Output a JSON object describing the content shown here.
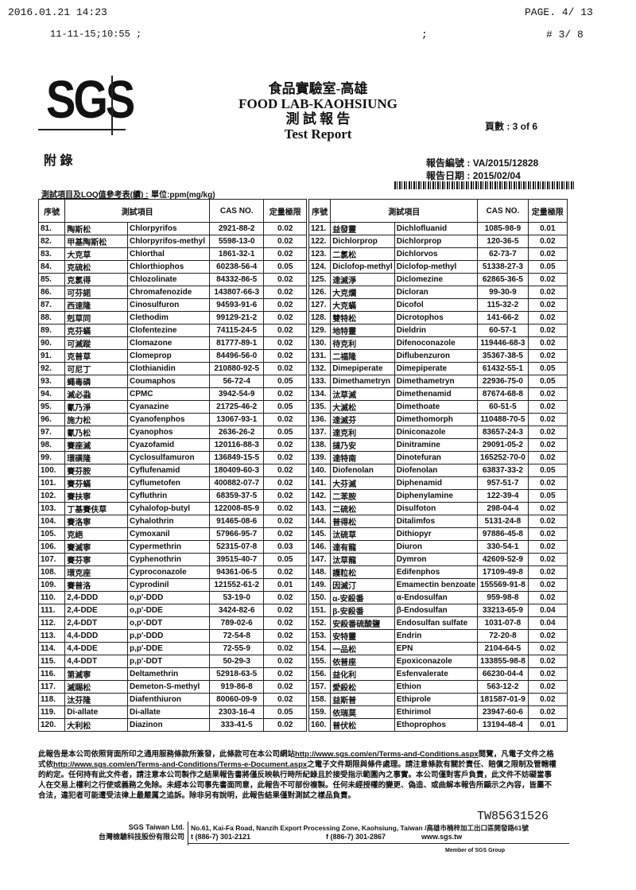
{
  "fax_header": {
    "datetime": "2016.01.21  14:23",
    "page": "PAGE.  4/ 13",
    "stamp": "11-11-15;10:55  ;",
    "sep": ";",
    "sheet": "#  3/  8"
  },
  "logo": "SGS",
  "title": {
    "zh_lab": "食品實驗室-高雄",
    "en_lab": "FOOD LAB-KAOHSIUNG",
    "zh_report": "測 試 報 告",
    "en_report": "Test Report"
  },
  "page_count": "頁數 : 3 of 6",
  "appendix": "附  錄",
  "report_no_label": "報告編號 :",
  "report_no": "VA/2015/12828",
  "report_date_label": "報告日期 :",
  "report_date": "2015/02/04",
  "table_caption": "測試項目及LOQ值參考表(續) :",
  "unit": "單位:ppm(mg/kg)",
  "headers": {
    "no": "序號",
    "item": "測試項目",
    "cas": "CAS NO.",
    "loq": "定量極限"
  },
  "rows_left": [
    [
      "81.",
      "陶斯松",
      "Chlorpyrifos",
      "2921-88-2",
      "0.02"
    ],
    [
      "82.",
      "甲基陶斯松",
      "Chlorpyrifos-methyl",
      "5598-13-0",
      "0.02"
    ],
    [
      "83.",
      "大克草",
      "Chlorthal",
      "1861-32-1",
      "0.02"
    ],
    [
      "84.",
      "克硫松",
      "Chlorthiophos",
      "60238-56-4",
      "0.05"
    ],
    [
      "85.",
      "克氯得",
      "Chlozolinate",
      "84332-86-5",
      "0.02"
    ],
    [
      "86.",
      "可芬諾",
      "Chromafenozide",
      "143807-66-3",
      "0.02"
    ],
    [
      "87.",
      "西速隆",
      "Cinosulfuron",
      "94593-91-6",
      "0.02"
    ],
    [
      "88.",
      "剋草同",
      "Clethodim",
      "99129-21-2",
      "0.02"
    ],
    [
      "89.",
      "克芬蟎",
      "Clofentezine",
      "74115-24-5",
      "0.02"
    ],
    [
      "90.",
      "可滅蹤",
      "Clomazone",
      "81777-89-1",
      "0.02"
    ],
    [
      "91.",
      "克普草",
      "Clomeprop",
      "84496-56-0",
      "0.02"
    ],
    [
      "92.",
      "可尼丁",
      "Clothianidin",
      "210880-92-5",
      "0.02"
    ],
    [
      "93.",
      "蠅毒磷",
      "Coumaphos",
      "56-72-4",
      "0.05"
    ],
    [
      "94.",
      "滅必蝨",
      "CPMC",
      "3942-54-9",
      "0.02"
    ],
    [
      "95.",
      "氰乃淨",
      "Cyanazine",
      "21725-46-2",
      "0.05"
    ],
    [
      "96.",
      "施力松",
      "Cyanofenphos",
      "13067-93-1",
      "0.02"
    ],
    [
      "97.",
      "氰乃松",
      "Cyanophos",
      "2636-26-2",
      "0.05"
    ],
    [
      "98.",
      "賽座滅",
      "Cyazofamid",
      "120116-88-3",
      "0.02"
    ],
    [
      "99.",
      "環磺隆",
      "Cyclosulfamuron",
      "136849-15-5",
      "0.02"
    ],
    [
      "100.",
      "賽芬胺",
      "Cyflufenamid",
      "180409-60-3",
      "0.02"
    ],
    [
      "101.",
      "賽芬蟎",
      "Cyflumetofen",
      "400882-07-7",
      "0.02"
    ],
    [
      "102.",
      "賽扶寧",
      "Cyfluthrin",
      "68359-37-5",
      "0.02"
    ],
    [
      "103.",
      "丁基賽伕草",
      "Cyhalofop-butyl",
      "122008-85-9",
      "0.02"
    ],
    [
      "104.",
      "賽洛寧",
      "Cyhalothrin",
      "91465-08-6",
      "0.02"
    ],
    [
      "105.",
      "克絕",
      "Cymoxanil",
      "57966-95-7",
      "0.02"
    ],
    [
      "106.",
      "賽滅寧",
      "Cypermethrin",
      "52315-07-8",
      "0.03"
    ],
    [
      "107.",
      "賽芬寧",
      "Cyphenothrin",
      "39515-40-7",
      "0.05"
    ],
    [
      "108.",
      "環克座",
      "Cyproconazole",
      "94361-06-5",
      "0.02"
    ],
    [
      "109.",
      "賽普洛",
      "Cyprodinil",
      "121552-61-2",
      "0.01"
    ],
    [
      "110.",
      "2,4-DDD",
      "o,p'-DDD",
      "53-19-0",
      "0.02"
    ],
    [
      "111.",
      "2,4-DDE",
      "o,p'-DDE",
      "3424-82-6",
      "0.02"
    ],
    [
      "112.",
      "2,4-DDT",
      "o,p'-DDT",
      "789-02-6",
      "0.02"
    ],
    [
      "113.",
      "4,4-DDD",
      "p,p'-DDD",
      "72-54-8",
      "0.02"
    ],
    [
      "114.",
      "4,4-DDE",
      "p,p'-DDE",
      "72-55-9",
      "0.02"
    ],
    [
      "115.",
      "4,4-DDT",
      "p,p'-DDT",
      "50-29-3",
      "0.02"
    ],
    [
      "116.",
      "第滅寧",
      "Deltamethrin",
      "52918-63-5",
      "0.02"
    ],
    [
      "117.",
      "滅賜松",
      "Demeton-S-methyl",
      "919-86-8",
      "0.02"
    ],
    [
      "118.",
      "汰芬隆",
      "Diafenthiuron",
      "80060-09-9",
      "0.02"
    ],
    [
      "119.",
      "Di-allate",
      "Di-allate",
      "2303-16-4",
      "0.05"
    ],
    [
      "120.",
      "大利松",
      "Diazinon",
      "333-41-5",
      "0.02"
    ]
  ],
  "rows_right": [
    [
      "121.",
      "益發靈",
      "Dichlofluanid",
      "1085-98-9",
      "0.01"
    ],
    [
      "122.",
      "Dichlorprop",
      "Dichlorprop",
      "120-36-5",
      "0.02"
    ],
    [
      "123.",
      "二氯松",
      "Dichlorvos",
      "62-73-7",
      "0.02"
    ],
    [
      "124.",
      "Diclofop-methyl",
      "Diclofop-methyl",
      "51338-27-3",
      "0.05"
    ],
    [
      "125.",
      "達滅淨",
      "Diclomezine",
      "62865-36-5",
      "0.02"
    ],
    [
      "126.",
      "大克爛",
      "Dicloran",
      "99-30-9",
      "0.02"
    ],
    [
      "127.",
      "大克蟎",
      "Dicofol",
      "115-32-2",
      "0.02"
    ],
    [
      "128.",
      "雙特松",
      "Dicrotophos",
      "141-66-2",
      "0.02"
    ],
    [
      "129.",
      "地特靈",
      "Dieldrin",
      "60-57-1",
      "0.02"
    ],
    [
      "130.",
      "待克利",
      "Difenoconazole",
      "119446-68-3",
      "0.02"
    ],
    [
      "131.",
      "二福隆",
      "Diflubenzuron",
      "35367-38-5",
      "0.02"
    ],
    [
      "132.",
      "Dimepiperate",
      "Dimepiperate",
      "61432-55-1",
      "0.05"
    ],
    [
      "133.",
      "Dimethametryn",
      "Dimethametryn",
      "22936-75-0",
      "0.05"
    ],
    [
      "134.",
      "汰草滅",
      "Dimethenamid",
      "87674-68-8",
      "0.02"
    ],
    [
      "135.",
      "大滅松",
      "Dimethoate",
      "60-51-5",
      "0.02"
    ],
    [
      "136.",
      "達滅芬",
      "Dimethomorph",
      "110488-70-5",
      "0.02"
    ],
    [
      "137.",
      "達克利",
      "Diniconazole",
      "83657-24-3",
      "0.02"
    ],
    [
      "138.",
      "撻乃安",
      "Dinitramine",
      "29091-05-2",
      "0.02"
    ],
    [
      "139.",
      "達特南",
      "Dinotefuran",
      "165252-70-0",
      "0.02"
    ],
    [
      "140.",
      "Diofenolan",
      "Diofenolan",
      "63837-33-2",
      "0.05"
    ],
    [
      "141.",
      "大芬滅",
      "Diphenamid",
      "957-51-7",
      "0.02"
    ],
    [
      "142.",
      "二苯胺",
      "Diphenylamine",
      "122-39-4",
      "0.05"
    ],
    [
      "143.",
      "二硫松",
      "Disulfoton",
      "298-04-4",
      "0.02"
    ],
    [
      "144.",
      "普得松",
      "Ditalimfos",
      "5131-24-8",
      "0.02"
    ],
    [
      "145.",
      "汰硫草",
      "Dithiopyr",
      "97886-45-8",
      "0.02"
    ],
    [
      "146.",
      "達有龍",
      "Diuron",
      "330-54-1",
      "0.02"
    ],
    [
      "147.",
      "汰草龍",
      "Dymron",
      "42609-52-9",
      "0.02"
    ],
    [
      "148.",
      "護粒松",
      "Edifenphos",
      "17109-49-8",
      "0.02"
    ],
    [
      "149.",
      "因滅汀",
      "Emamectin benzoate",
      "155569-91-8",
      "0.02"
    ],
    [
      "150.",
      "α-安殺番",
      "α-Endosulfan",
      "959-98-8",
      "0.02"
    ],
    [
      "151.",
      "β-安殺番",
      "β-Endosulfan",
      "33213-65-9",
      "0.04"
    ],
    [
      "152.",
      "安殺番硫酸鹽",
      "Endosulfan sulfate",
      "1031-07-8",
      "0.04"
    ],
    [
      "153.",
      "安特靈",
      "Endrin",
      "72-20-8",
      "0.02"
    ],
    [
      "154.",
      "一品松",
      "EPN",
      "2104-64-5",
      "0.02"
    ],
    [
      "155.",
      "依普座",
      "Epoxiconazole",
      "133855-98-8",
      "0.02"
    ],
    [
      "156.",
      "益化利",
      "Esfenvalerate",
      "66230-04-4",
      "0.02"
    ],
    [
      "157.",
      "愛殺松",
      "Ethion",
      "563-12-2",
      "0.02"
    ],
    [
      "158.",
      "益斯普",
      "Ethiprole",
      "181587-01-9",
      "0.02"
    ],
    [
      "159.",
      "依瑞莫",
      "Ethirimol",
      "23947-60-6",
      "0.02"
    ],
    [
      "160.",
      "普伏松",
      "Ethoprophos",
      "13194-48-4",
      "0.01"
    ]
  ],
  "disclaimer": {
    "p1": "此報告是本公司依照背面所印之通用服務條款所簽發，此條款可在本公司網站",
    "link1": "http://www.sgs.com/en/Terms-and-Conditions.aspx",
    "p2": "閱覽，凡電子文件之格式依",
    "link2": "http://www.sgs.com/en/Terms-and-Conditions/Terms-e-Document.aspx",
    "p3": "之電子文件期限與條件處理。請注意條款有關於責任、賠償之限制及管轄權的約定。任何持有此文件者，請注意本公司製作之結果報告書將僅反映執行時所紀錄且於接受指示範圍內之事實。本公司僅對客戶負責，此文件不妨礙當事人在交易上權利之行使或義務之免除。未經本公司事先書面同意，此報告不可部份複製。任何未經授權的變更、偽造、或曲解本報告所顯示之內容，皆屬不合法，違犯者可能遭受法律上最嚴厲之追訴。除非另有說明，此報告結果僅對測試之樣品負責。"
  },
  "doc_id": "TW85631526",
  "footer": {
    "company_en": "SGS Taiwan Ltd.",
    "company_zh": "台灣檢驗科技股份有限公司",
    "address": "No.61, Kai-Fa Road, Nanzih Export Processing Zone, Kaohsiung, Taiwan /高雄市楠梓加工出口區開發路61號",
    "tel": "t (886-7) 301-2121",
    "fax": "f (886-7) 301-2867",
    "web": "www.sgs.tw",
    "member": "Member of SGS Group"
  }
}
